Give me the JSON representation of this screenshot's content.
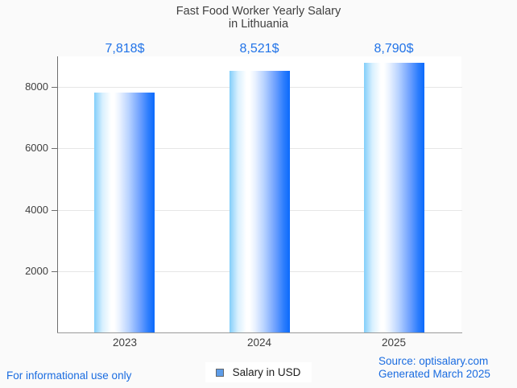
{
  "title": {
    "line1": "Fast Food Worker Yearly Salary",
    "line2": "in Lithuania"
  },
  "legend": {
    "label": "Salary in USD"
  },
  "footer": {
    "left": "For informational use only",
    "source": "Source: optisalary.com",
    "generated": "Generated March 2025"
  },
  "colors": {
    "background": "#fafafa",
    "plot_background": "#ffffff",
    "bar_gradient_left": "#82cefa",
    "bar_gradient_mid": "#ffffff",
    "bar_gradient_right": "#0b6afc",
    "value_label": "#2173e8",
    "footer_text": "#1a6ce0",
    "axis": "#6e6e6e",
    "gridline": "#e6e6e6",
    "tick_text": "#3f3f3f",
    "legend_marker": "#5d9ce8"
  },
  "chart_data": {
    "type": "bar",
    "categories": [
      "2023",
      "2024",
      "2025"
    ],
    "series": [
      {
        "name": "Salary in USD",
        "values": [
          7818,
          8521,
          8790
        ]
      }
    ],
    "value_labels": [
      "7,818$",
      "8,521$",
      "8,790$"
    ],
    "title": "Fast Food Worker Yearly Salary in Lithuania",
    "xlabel": "",
    "ylabel": "",
    "ylim": [
      0,
      9000
    ],
    "yticks": [
      2000,
      4000,
      6000,
      8000
    ],
    "grid": true,
    "legend_position": "bottom"
  }
}
